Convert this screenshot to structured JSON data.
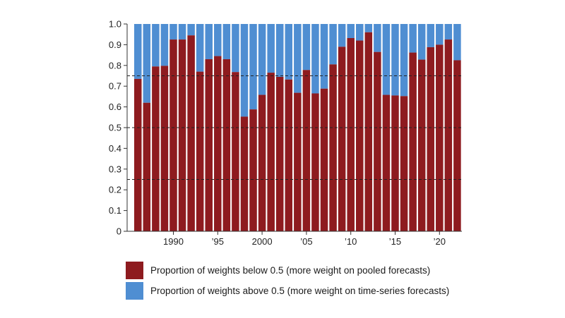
{
  "colors": {
    "below": "#8e1b1f",
    "above": "#4f8ed2",
    "axis": "#333333",
    "reference": "#222222"
  },
  "legend": [
    {
      "label": "Proportion of weights below 0.5 (more weight on pooled forecasts)",
      "color": "#8e1b1f"
    },
    {
      "label": "Proportion of weights above 0.5 (more weight on time-series forecasts)",
      "color": "#4f8ed2"
    }
  ],
  "chart_data": {
    "type": "bar",
    "stacked": true,
    "title": "",
    "xlabel": "",
    "ylabel": "",
    "ylim": [
      0,
      1.0
    ],
    "yticks": [
      "0",
      "0.1",
      "0.2",
      "0.3",
      "0.4",
      "0.5",
      "0.6",
      "0.7",
      "0.8",
      "0.9",
      "1.0"
    ],
    "xticks": [
      {
        "year": 1990,
        "label": "1990"
      },
      {
        "year": 1995,
        "label": "’95"
      },
      {
        "year": 2000,
        "label": "2000"
      },
      {
        "year": 2005,
        "label": "’05"
      },
      {
        "year": 2010,
        "label": "’10"
      },
      {
        "year": 2015,
        "label": "’15"
      },
      {
        "year": 2020,
        "label": "’20"
      }
    ],
    "reference_lines": [
      0.25,
      0.5,
      0.75
    ],
    "categories": [
      1986,
      1987,
      1988,
      1989,
      1990,
      1991,
      1992,
      1993,
      1994,
      1995,
      1996,
      1997,
      1998,
      1999,
      2000,
      2001,
      2002,
      2003,
      2004,
      2005,
      2006,
      2007,
      2008,
      2009,
      2010,
      2011,
      2012,
      2013,
      2014,
      2015,
      2016,
      2017,
      2018,
      2019,
      2020,
      2021,
      2022
    ],
    "series": [
      {
        "name": "Proportion of weights below 0.5 (more weight on pooled forecasts)",
        "values": [
          0.735,
          0.62,
          0.795,
          0.798,
          0.925,
          0.925,
          0.945,
          0.77,
          0.83,
          0.845,
          0.83,
          0.768,
          0.553,
          0.588,
          0.658,
          0.765,
          0.745,
          0.732,
          0.668,
          0.778,
          0.665,
          0.688,
          0.805,
          0.89,
          0.932,
          0.92,
          0.96,
          0.865,
          0.658,
          0.655,
          0.652,
          0.862,
          0.828,
          0.888,
          0.9,
          0.925,
          0.825
        ]
      },
      {
        "name": "Proportion of weights above 0.5 (more weight on time-series forecasts)",
        "values": [
          0.265,
          0.38,
          0.205,
          0.202,
          0.075,
          0.075,
          0.055,
          0.23,
          0.17,
          0.155,
          0.17,
          0.232,
          0.447,
          0.412,
          0.342,
          0.235,
          0.255,
          0.268,
          0.332,
          0.222,
          0.335,
          0.312,
          0.195,
          0.11,
          0.068,
          0.08,
          0.04,
          0.135,
          0.342,
          0.345,
          0.348,
          0.138,
          0.172,
          0.112,
          0.1,
          0.075,
          0.175
        ]
      }
    ]
  }
}
